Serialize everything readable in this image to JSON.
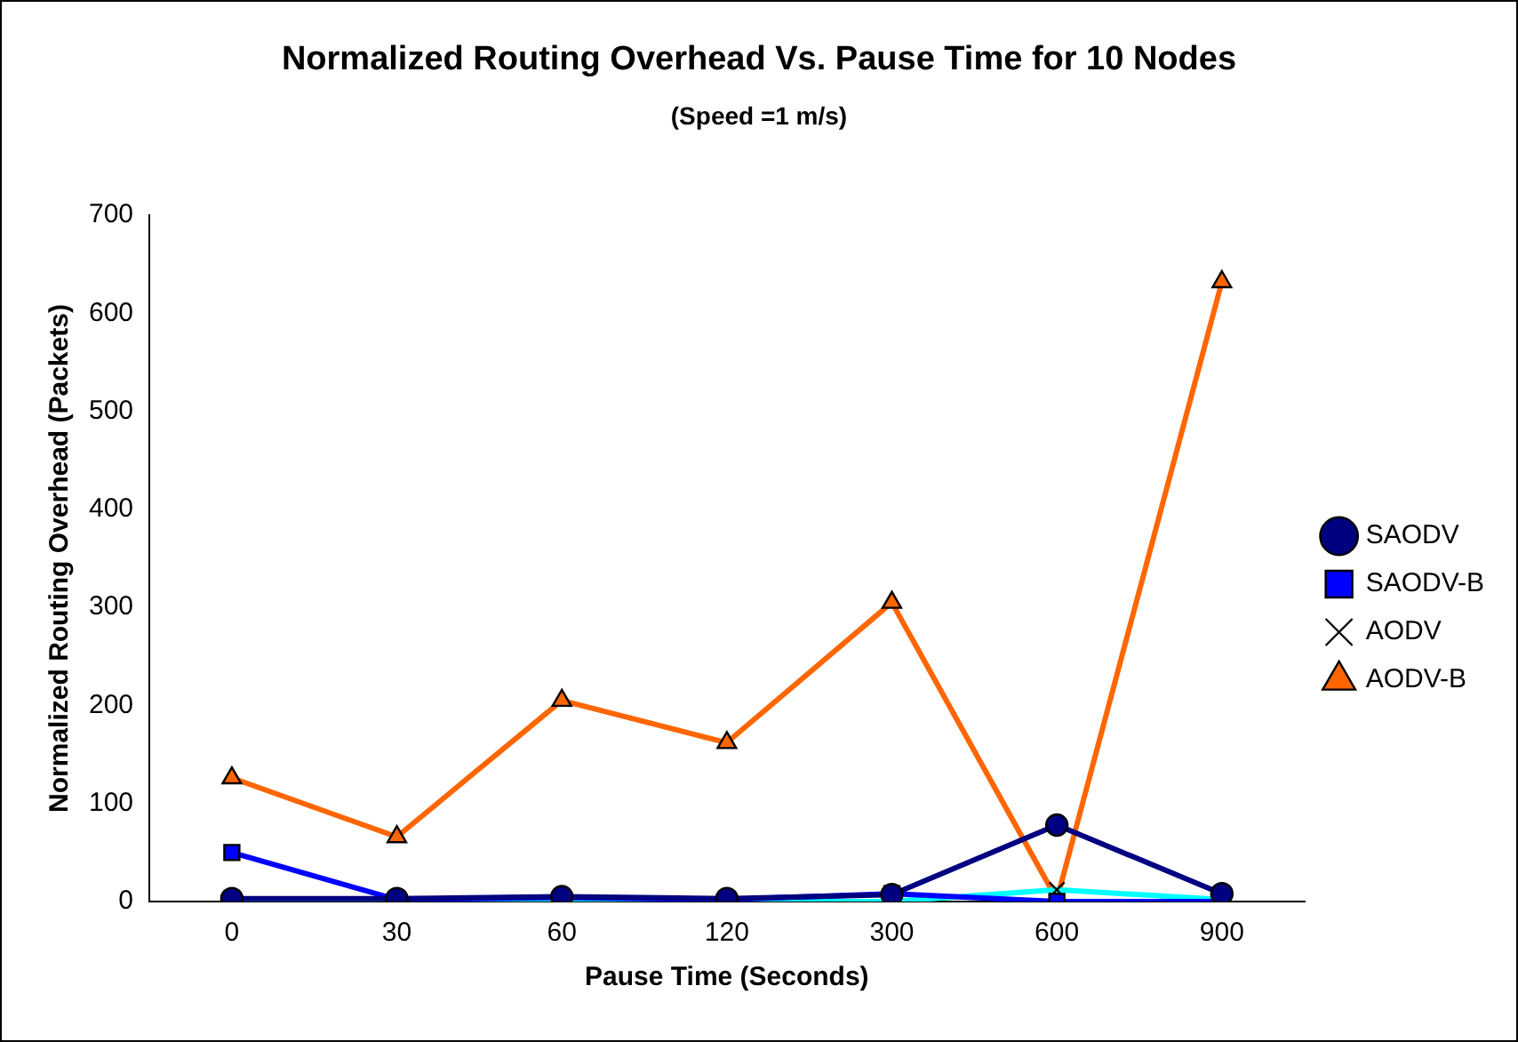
{
  "chart_data": {
    "type": "line",
    "title": "Normalized Routing Overhead Vs. Pause Time for 10 Nodes",
    "subtitle": "(Speed =1 m/s)",
    "xlabel": "Pause Time (Seconds)",
    "ylabel": "Normalized Routing Overhead (Packets)",
    "categories": [
      "0",
      "30",
      "60",
      "120",
      "300",
      "600",
      "900"
    ],
    "series": [
      {
        "name": "SAODV",
        "color": "#000080",
        "marker": "circle",
        "values": [
          3,
          3,
          5,
          3,
          7,
          78,
          8
        ]
      },
      {
        "name": "SAODV-B",
        "color": "#0000ff",
        "marker": "square",
        "values": [
          50,
          2,
          4,
          2,
          8,
          0,
          0
        ]
      },
      {
        "name": "AODV",
        "color": "#00ffff",
        "marker": "cross",
        "values": [
          0,
          0,
          0,
          0,
          0,
          12,
          2
        ]
      },
      {
        "name": "AODV-B",
        "color": "#ff6600",
        "marker": "triangle",
        "values": [
          126,
          66,
          205,
          162,
          305,
          2,
          632
        ]
      }
    ],
    "ylim": [
      0,
      700
    ],
    "yticks": [
      0,
      100,
      200,
      300,
      400,
      500,
      600,
      700
    ],
    "grid": false,
    "legend": "right"
  }
}
